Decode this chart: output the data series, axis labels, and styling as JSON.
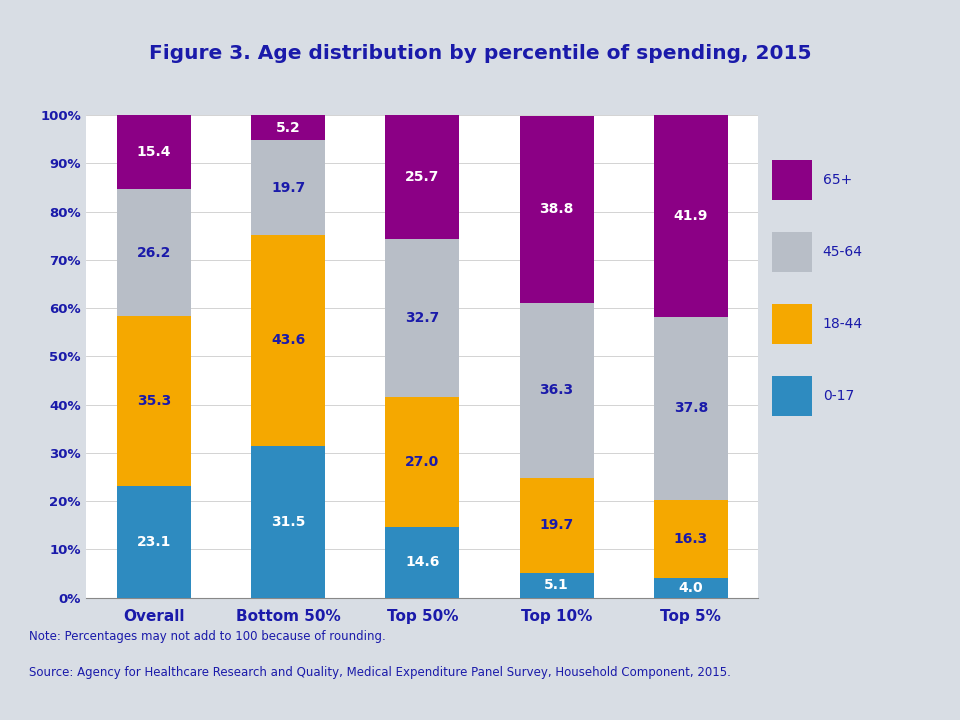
{
  "title": "Figure 3. Age distribution by percentile of spending, 2015",
  "categories": [
    "Overall",
    "Bottom 50%",
    "Top 50%",
    "Top 10%",
    "Top 5%"
  ],
  "segments": {
    "0-17": [
      23.1,
      31.5,
      14.6,
      5.1,
      4.0
    ],
    "18-44": [
      35.3,
      43.6,
      27.0,
      19.7,
      16.3
    ],
    "45-64": [
      26.2,
      19.7,
      32.7,
      36.3,
      37.8
    ],
    "65+": [
      15.4,
      5.2,
      25.7,
      38.8,
      41.9
    ]
  },
  "colors": {
    "0-17": "#2E8BC0",
    "18-44": "#F5A800",
    "45-64": "#B8BEC7",
    "65+": "#8B0085"
  },
  "label_colors": {
    "0-17": "#ffffff",
    "18-44": "#1a1aaa",
    "45-64": "#1a1aaa",
    "65+": "#ffffff"
  },
  "legend_order": [
    "65+",
    "45-64",
    "18-44",
    "0-17"
  ],
  "legend_colors": {
    "65+": "#8B0085",
    "45-64": "#B8BEC7",
    "18-44": "#F5A800",
    "0-17": "#2E8BC0"
  },
  "ylim": [
    0,
    100
  ],
  "ytick_labels": [
    "0%",
    "10%",
    "20%",
    "30%",
    "40%",
    "50%",
    "60%",
    "70%",
    "80%",
    "90%",
    "100%"
  ],
  "note_line1": "Note: Percentages may not add to 100 because of rounding.",
  "note_line2": "Source: Agency for Healthcare Research and Quality, Medical Expenditure Panel Survey, Household Component, 2015.",
  "background_color": "#d8dde4",
  "plot_bg_color": "#ffffff",
  "title_color": "#1a1aaa",
  "axis_label_color": "#1a1aaa",
  "note_color": "#1a1aaa",
  "legend_text_color": "#1a1aaa",
  "bar_width": 0.55,
  "separator_color": "#8890b0"
}
